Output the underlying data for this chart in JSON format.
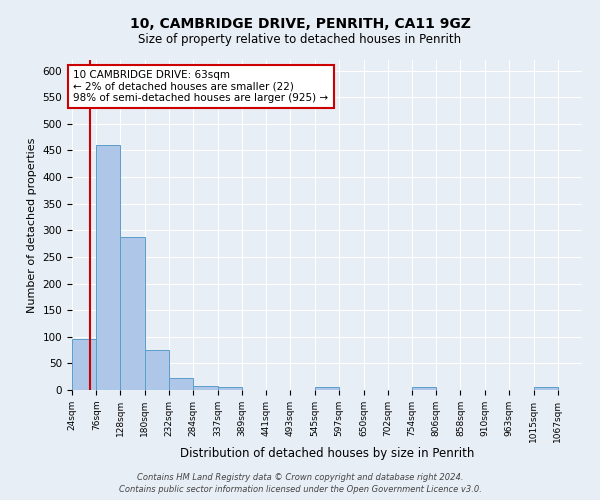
{
  "title": "10, CAMBRIDGE DRIVE, PENRITH, CA11 9GZ",
  "subtitle": "Size of property relative to detached houses in Penrith",
  "xlabel": "Distribution of detached houses by size in Penrith",
  "ylabel": "Number of detached properties",
  "bin_labels": [
    "24sqm",
    "76sqm",
    "128sqm",
    "180sqm",
    "232sqm",
    "284sqm",
    "337sqm",
    "389sqm",
    "441sqm",
    "493sqm",
    "545sqm",
    "597sqm",
    "650sqm",
    "702sqm",
    "754sqm",
    "806sqm",
    "858sqm",
    "910sqm",
    "963sqm",
    "1015sqm",
    "1067sqm"
  ],
  "bin_edges": [
    24,
    76,
    128,
    180,
    232,
    284,
    337,
    389,
    441,
    493,
    545,
    597,
    650,
    702,
    754,
    806,
    858,
    910,
    963,
    1015,
    1067,
    1119
  ],
  "bar_heights": [
    95,
    460,
    288,
    76,
    23,
    7,
    6,
    0,
    0,
    0,
    5,
    0,
    0,
    0,
    5,
    0,
    0,
    0,
    0,
    5,
    0
  ],
  "bar_color": "#aec6e8",
  "bar_edge_color": "#5a9ec9",
  "background_color": "#e8eef5",
  "grid_color": "#ffffff",
  "annotation_box_color": "#ffffff",
  "annotation_box_edge": "#cc0000",
  "vline_x": 63,
  "vline_color": "#cc0000",
  "annotation_title": "10 CAMBRIDGE DRIVE: 63sqm",
  "annotation_line1": "← 2% of detached houses are smaller (22)",
  "annotation_line2": "98% of semi-detached houses are larger (925) →",
  "ylim": [
    0,
    620
  ],
  "footer1": "Contains HM Land Registry data © Crown copyright and database right 2024.",
  "footer2": "Contains public sector information licensed under the Open Government Licence v3.0."
}
